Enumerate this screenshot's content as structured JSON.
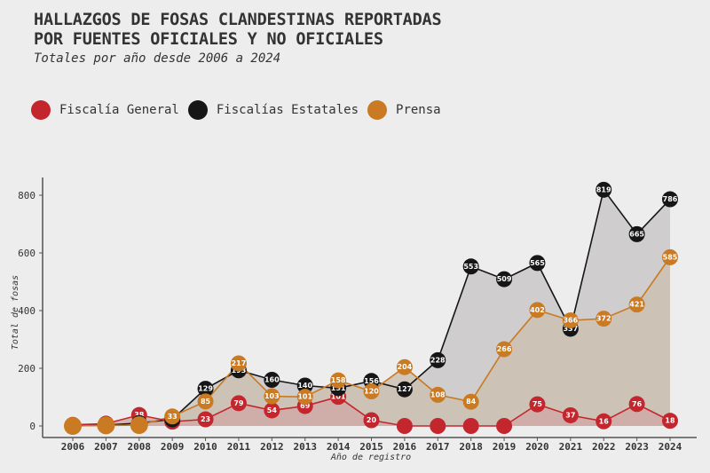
{
  "header": {
    "title_line1": "HALLAZGOS DE FOSAS CLANDESTINAS REPORTADAS",
    "title_line2": "POR FUENTES OFICIALES Y NO OFICIALES",
    "subtitle": "Totales por año desde 2006 a 2024"
  },
  "legend": [
    {
      "label": "Fiscalía General",
      "color": "#c4262e"
    },
    {
      "label": "Fiscalías Estatales",
      "color": "#161616"
    },
    {
      "label": "Prensa",
      "color": "#c97a22"
    }
  ],
  "chart_data": {
    "type": "line",
    "title": "HALLAZGOS DE FOSAS CLANDESTINAS REPORTADAS POR FUENTES OFICIALES Y NO OFICIALES",
    "subtitle": "Totales por año desde 2006 a 2024",
    "xlabel": "Año de registro",
    "ylabel": "Total de fosas",
    "x": [
      2006,
      2007,
      2008,
      2009,
      2010,
      2011,
      2012,
      2013,
      2014,
      2015,
      2016,
      2017,
      2018,
      2019,
      2020,
      2021,
      2022,
      2023,
      2024
    ],
    "yticks": [
      0,
      200,
      400,
      600,
      800
    ],
    "ylim": [
      0,
      800
    ],
    "legend_position": "top-left",
    "grid": false,
    "series": [
      {
        "name": "Fiscalías Estatales",
        "color": "#161616",
        "fill": "#c9c7c8",
        "values": [
          0,
          3,
          10,
          23,
          129,
          193,
          160,
          140,
          131,
          156,
          127,
          228,
          553,
          509,
          565,
          337,
          819,
          665,
          786
        ],
        "labels": [
          null,
          null,
          null,
          "23",
          "129",
          "193",
          "160",
          "140",
          "131",
          "156",
          "127",
          "228",
          "553",
          "509",
          "565",
          "337",
          "819",
          "665",
          "786"
        ]
      },
      {
        "name": "Prensa",
        "color": "#c97a22",
        "fill": "#cdbfb1",
        "values": [
          0,
          2,
          3,
          33,
          85,
          217,
          103,
          101,
          158,
          120,
          204,
          108,
          84,
          266,
          402,
          366,
          372,
          421,
          585
        ],
        "labels": [
          null,
          null,
          null,
          "33",
          "85",
          "217",
          "103",
          "101",
          "158",
          "120",
          "204",
          "108",
          "84",
          "266",
          "402",
          "366",
          "372",
          "421",
          "585"
        ]
      },
      {
        "name": "Fiscalía General",
        "color": "#c4262e",
        "fill": "#cfa9a6",
        "values": [
          4,
          8,
          38,
          15,
          23,
          79,
          54,
          69,
          101,
          20,
          0,
          0,
          0,
          0,
          75,
          37,
          16,
          76,
          18
        ],
        "labels": [
          null,
          null,
          "38",
          null,
          "23",
          "79",
          "54",
          "69",
          "101",
          "20",
          null,
          null,
          null,
          null,
          "75",
          "37",
          "16",
          "76",
          "18"
        ]
      }
    ]
  }
}
